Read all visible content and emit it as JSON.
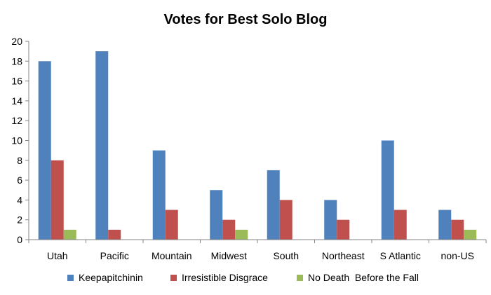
{
  "chart_data": {
    "type": "bar",
    "title": "Votes for Best Solo Blog",
    "xlabel": "",
    "ylabel": "",
    "categories": [
      "Utah",
      "Pacific",
      "Mountain",
      "Midwest",
      "South",
      "Northeast",
      "S Atlantic",
      "non-US"
    ],
    "series": [
      {
        "name": "Keepapitchinin",
        "color": "#4F81BD",
        "values": [
          18,
          19,
          9,
          5,
          7,
          4,
          10,
          3
        ]
      },
      {
        "name": "Irresistible Disgrace",
        "color": "#C0504D",
        "values": [
          8,
          1,
          3,
          2,
          4,
          2,
          3,
          2
        ]
      },
      {
        "name": "No Death  Before the Fall",
        "color": "#9BBB59",
        "values": [
          1,
          0,
          0,
          1,
          0,
          0,
          0,
          1
        ]
      }
    ],
    "ylim": [
      0,
      20
    ],
    "yticks": [
      0,
      2,
      4,
      6,
      8,
      10,
      12,
      14,
      16,
      18,
      20
    ],
    "grid": false,
    "legend_position": "bottom"
  }
}
